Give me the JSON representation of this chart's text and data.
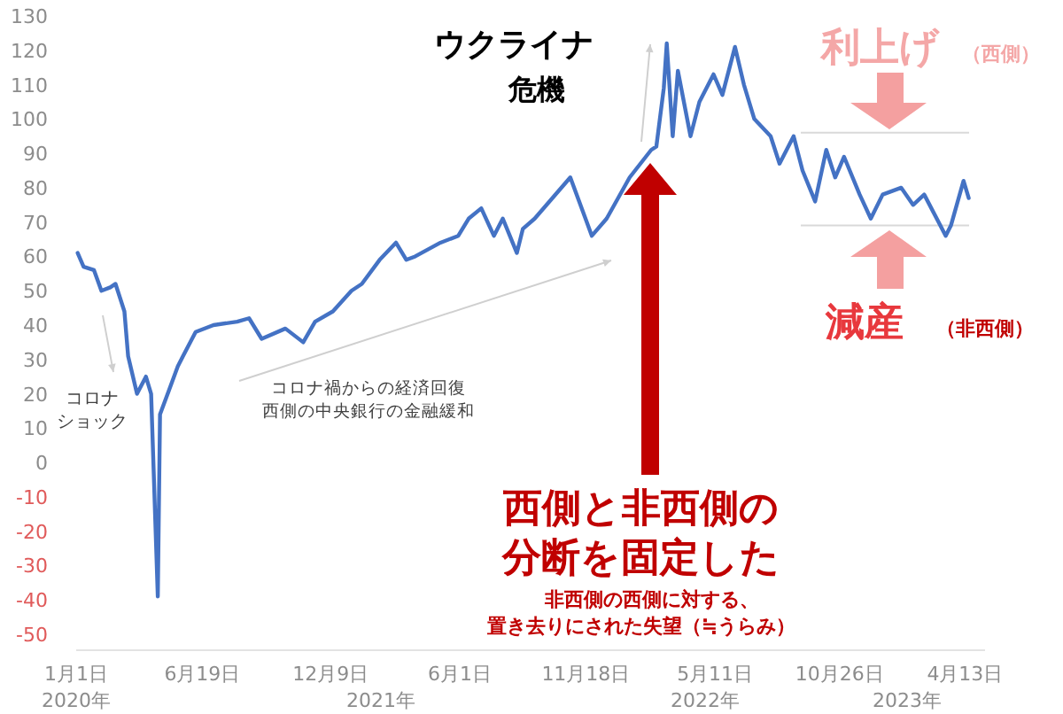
{
  "chart_data": {
    "type": "line",
    "x": [
      "2020-01-03",
      "2020-01-11",
      "2020-01-25",
      "2020-02-04",
      "2020-02-16",
      "2020-02-23",
      "2020-03-06",
      "2020-03-11",
      "2020-03-23",
      "2020-04-04",
      "2020-04-11",
      "2020-04-20",
      "2020-04-23",
      "2020-05-05",
      "2020-05-17",
      "2020-05-24",
      "2020-06-10",
      "2020-07-04",
      "2020-08-05",
      "2020-08-21",
      "2020-09-07",
      "2020-10-09",
      "2020-11-02",
      "2020-11-18",
      "2020-12-12",
      "2021-01-06",
      "2021-01-20",
      "2021-02-13",
      "2021-03-07",
      "2021-03-21",
      "2021-04-02",
      "2021-05-06",
      "2021-05-30",
      "2021-06-13",
      "2021-06-30",
      "2021-07-17",
      "2021-07-29",
      "2021-08-17",
      "2021-08-25",
      "2021-09-10",
      "2021-10-28",
      "2021-11-26",
      "2021-12-16",
      "2022-01-16",
      "2022-02-14",
      "2022-02-21",
      "2022-03-03",
      "2022-03-07",
      "2022-03-15",
      "2022-03-22",
      "2022-04-08",
      "2022-04-20",
      "2022-05-09",
      "2022-05-21",
      "2022-06-07",
      "2022-06-19",
      "2022-07-03",
      "2022-07-25",
      "2022-08-06",
      "2022-08-25",
      "2022-09-06",
      "2022-09-23",
      "2022-10-08",
      "2022-10-20",
      "2022-11-01",
      "2022-11-22",
      "2022-12-07",
      "2022-12-23",
      "2023-01-17",
      "2023-02-02",
      "2023-02-17",
      "2023-03-18",
      "2023-03-25",
      "2023-04-11",
      "2023-04-18"
    ],
    "series": [
      {
        "color": "#4472c4",
        "values": [
          61,
          57,
          56,
          50,
          51,
          52,
          44,
          31,
          20,
          25,
          20,
          -39,
          14,
          21,
          28,
          31,
          38,
          40,
          41,
          42,
          36,
          39,
          35,
          41,
          44,
          50,
          52,
          59,
          64,
          59,
          60,
          64,
          66,
          71,
          74,
          66,
          71,
          61,
          68,
          71,
          83,
          66,
          71,
          83,
          91,
          92,
          109,
          122,
          95,
          114,
          95,
          105,
          113,
          107,
          121,
          110,
          100,
          95,
          87,
          95,
          85,
          76,
          91,
          83,
          89,
          78,
          71,
          78,
          80,
          75,
          78,
          66,
          69,
          82,
          77
        ]
      }
    ],
    "xticks": [
      {
        "value": "2020-01-01",
        "label": "1月1日"
      },
      {
        "value": "2020-06-19",
        "label": "6月19日"
      },
      {
        "value": "2020-12-09",
        "label": "12月9日"
      },
      {
        "value": "2021-06-01",
        "label": "6月1日"
      },
      {
        "value": "2021-11-18",
        "label": "11月18日"
      },
      {
        "value": "2022-05-11",
        "label": "5月11日"
      },
      {
        "value": "2022-10-26",
        "label": "10月26日"
      },
      {
        "value": "2023-04-13",
        "label": "4月13日"
      }
    ],
    "xlim": [
      "2020-01-01",
      "2023-05-10"
    ],
    "ylim": [
      -50,
      130
    ],
    "yticks": [
      -50,
      -40,
      -30,
      -20,
      -10,
      0,
      10,
      20,
      30,
      40,
      50,
      60,
      70,
      80,
      90,
      100,
      110,
      120,
      130
    ],
    "grid": false,
    "ref_lines": [
      {
        "axis": "y",
        "value": 96,
        "color": "#d9d9d9"
      },
      {
        "axis": "y",
        "value": 69,
        "color": "#d9d9d9"
      }
    ],
    "annotations": [
      "ウクライナ",
      "危機",
      "利上げ",
      "（西側）",
      "減産",
      "（非西側）",
      "コロナ",
      "ショック",
      "コロナ禍からの経済回復",
      "西側の中央銀行の金融緩和",
      "西側と非西側の",
      "分断を固定した",
      "非西側の西側に対する、",
      "置き去りにされた失望（≒うらみ）",
      "2020年",
      "2021年",
      "2022年",
      "2023年"
    ]
  }
}
